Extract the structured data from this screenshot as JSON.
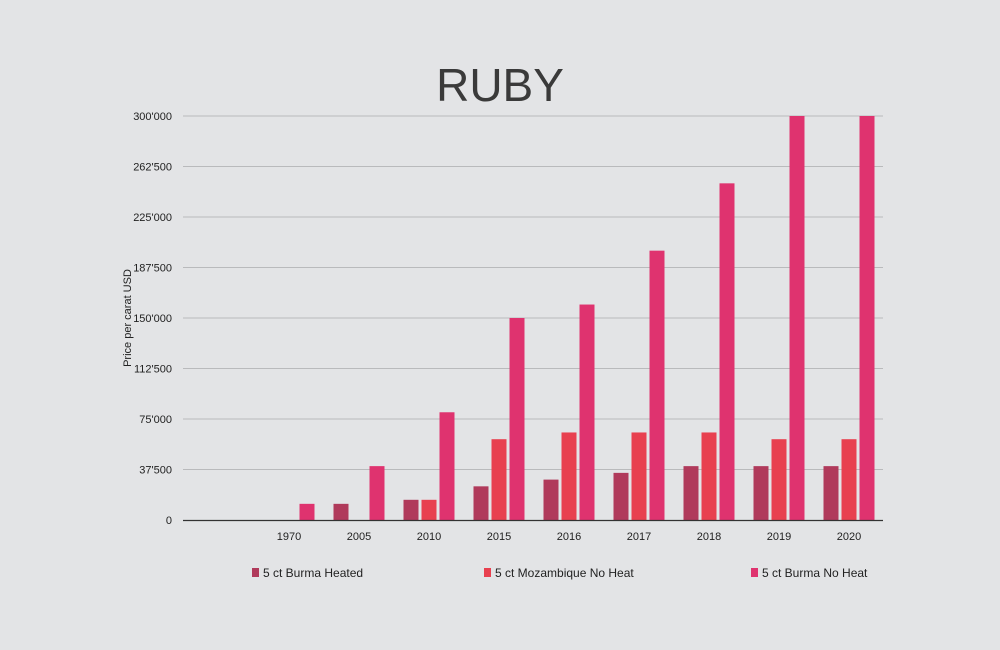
{
  "chart_data": {
    "type": "bar",
    "title": "RUBY",
    "ylabel": "Price per carat USD",
    "xlabel": "",
    "ylim": [
      0,
      300000
    ],
    "yticks": [
      0,
      37500,
      75000,
      112500,
      150000,
      187500,
      225000,
      262500,
      300000
    ],
    "ytick_labels": [
      "0",
      "37'500",
      "75'000",
      "112'500",
      "150'000",
      "187'500",
      "225'000",
      "262'500",
      "300'000"
    ],
    "categories": [
      "1970",
      "2005",
      "2010",
      "2015",
      "2016",
      "2017",
      "2018",
      "2019",
      "2020"
    ],
    "series": [
      {
        "name": "5 ct Burma Heated",
        "color": "#b03a5b",
        "values": [
          0,
          12000,
          15000,
          25000,
          30000,
          35000,
          40000,
          40000,
          40000
        ]
      },
      {
        "name": "5 ct Mozambique No Heat",
        "color": "#e8404f",
        "values": [
          0,
          0,
          15000,
          60000,
          65000,
          65000,
          65000,
          60000,
          60000
        ]
      },
      {
        "name": "5 ct Burma No Heat",
        "color": "#df336f",
        "values": [
          12000,
          40000,
          80000,
          150000,
          160000,
          200000,
          250000,
          300000,
          300000
        ]
      }
    ],
    "grid": true,
    "legend_position": "bottom"
  }
}
